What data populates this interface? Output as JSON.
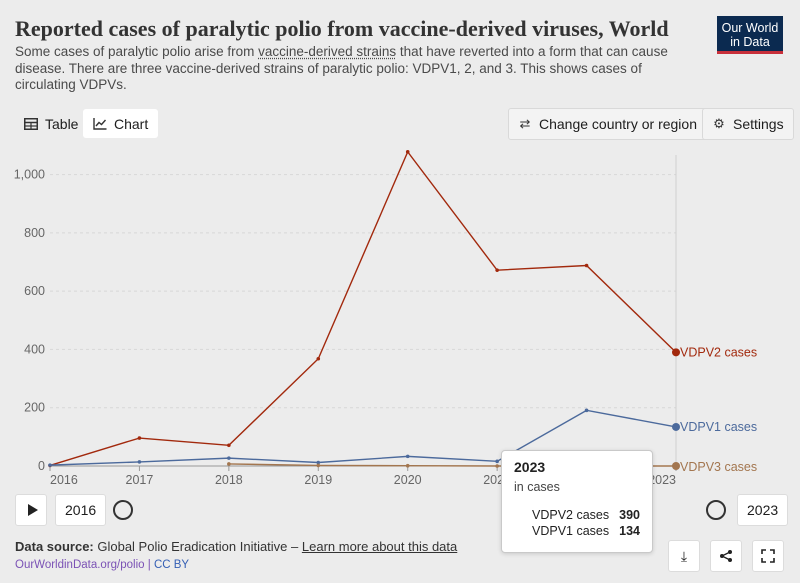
{
  "header": {
    "title": "Reported cases of paralytic polio from vaccine-derived viruses, World",
    "subtitle_part1": "Some cases of paralytic polio arise from ",
    "subtitle_link": "vaccine-derived strains",
    "subtitle_part2": " that have reverted into a form that can cause disease. There are three vaccine-derived strains of paralytic polio: VDPV1, 2, and 3. This shows cases of circulating VDPVs.",
    "logo_line1": "Our World",
    "logo_line2": "in Data"
  },
  "toolbar": {
    "table_label": "Table",
    "chart_label": "Chart",
    "change_label": "Change country or region",
    "settings_label": "Settings"
  },
  "timeline": {
    "start_year": "2016",
    "end_year": "2023"
  },
  "tooltip": {
    "year": "2023",
    "unit": "in cases",
    "rows": [
      {
        "label": "VDPV2 cases",
        "value": "390"
      },
      {
        "label": "VDPV1 cases",
        "value": "134"
      }
    ]
  },
  "footer": {
    "source_label": "Data source:",
    "source_text": " Global Polio Eradication Initiative – ",
    "learn_more": "Learn more about this data",
    "url": "OurWorldinData.org/polio",
    "separator": " | ",
    "license": "CC BY"
  },
  "colors": {
    "vdpv2": "#a2290d",
    "vdpv1": "#4c6a9c",
    "vdpv3": "#a3764f",
    "grid": "#d7d7d7"
  },
  "chart_data": {
    "type": "line",
    "title": "Reported cases of paralytic polio from vaccine-derived viruses, World",
    "x": [
      2016,
      2017,
      2018,
      2019,
      2020,
      2021,
      2022,
      2023
    ],
    "x_tick_labels": [
      "2016",
      "2017",
      "2018",
      "2019",
      "2020",
      "2021",
      "2022",
      "2023"
    ],
    "y_ticks": [
      0,
      200,
      400,
      600,
      800,
      1000
    ],
    "y_tick_labels": [
      "0",
      "200",
      "400",
      "600",
      "800",
      "1,000"
    ],
    "ylim": [
      0,
      1050
    ],
    "grid": "horizontal dashed",
    "series": [
      {
        "name": "VDPV2 cases",
        "color": "#a2290d",
        "x": [
          2016,
          2017,
          2018,
          2019,
          2020,
          2021,
          2022,
          2023
        ],
        "values": [
          2,
          96,
          71,
          368,
          1078,
          672,
          688,
          390
        ]
      },
      {
        "name": "VDPV1 cases",
        "color": "#4c6a9c",
        "x": [
          2016,
          2017,
          2018,
          2019,
          2020,
          2021,
          2022,
          2023
        ],
        "values": [
          3,
          14,
          27,
          12,
          33,
          16,
          191,
          134
        ]
      },
      {
        "name": "VDPV3 cases",
        "color": "#a3764f",
        "x": [
          2018,
          2019,
          2020,
          2021,
          2022,
          2023
        ],
        "values": [
          7,
          2,
          1,
          0,
          0,
          0
        ]
      }
    ]
  }
}
